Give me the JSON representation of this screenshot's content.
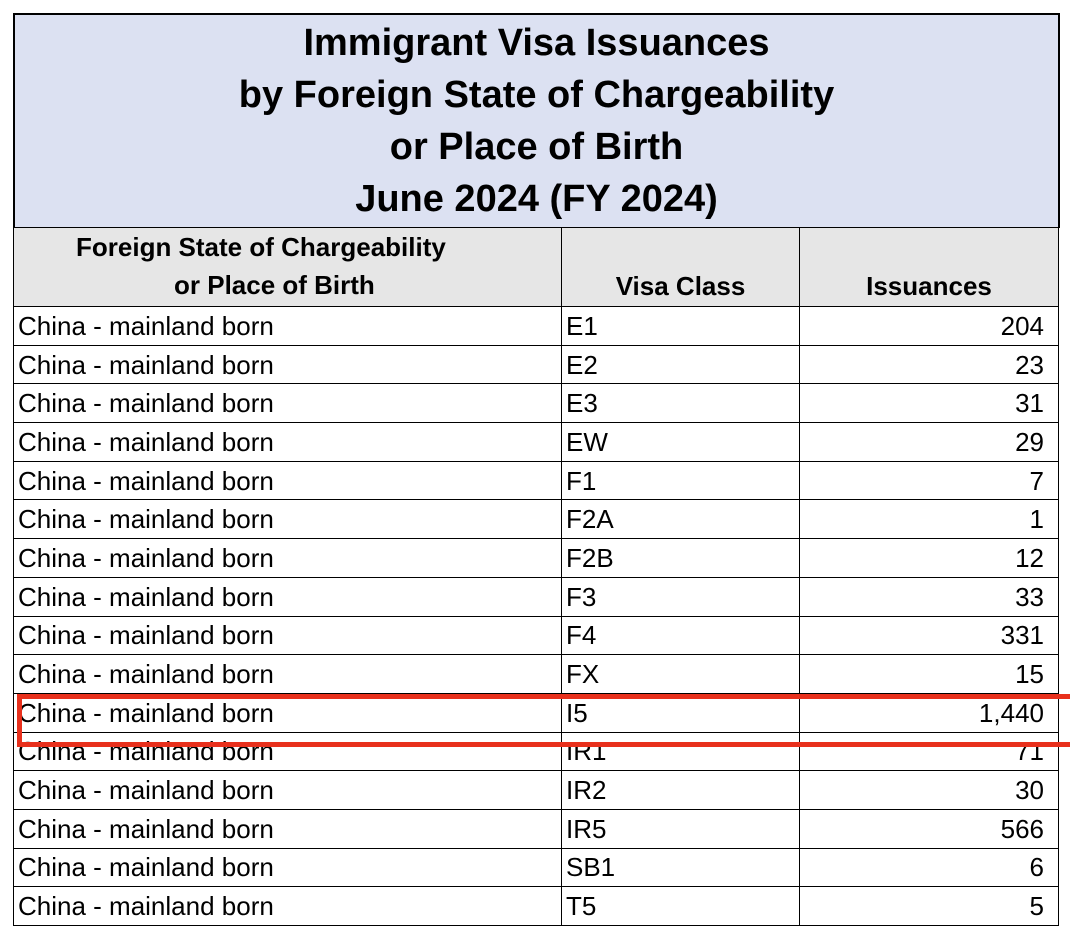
{
  "title": {
    "line1": "Immigrant Visa Issuances",
    "line2": "by Foreign State of Chargeability",
    "line3": "or Place of Birth",
    "line4": "June 2024 (FY 2024)"
  },
  "headers": {
    "col1_line1": "Foreign State of Chargeability",
    "col1_line2": "or Place of Birth",
    "col2": "Visa Class",
    "col3": "Issuances"
  },
  "rows": [
    {
      "place": "China - mainland born",
      "visa_class": "E1",
      "issuances": "204"
    },
    {
      "place": "China - mainland born",
      "visa_class": "E2",
      "issuances": "23"
    },
    {
      "place": "China - mainland born",
      "visa_class": "E3",
      "issuances": "31"
    },
    {
      "place": "China - mainland born",
      "visa_class": "EW",
      "issuances": "29"
    },
    {
      "place": "China - mainland born",
      "visa_class": "F1",
      "issuances": "7"
    },
    {
      "place": "China - mainland born",
      "visa_class": "F2A",
      "issuances": "1"
    },
    {
      "place": "China - mainland born",
      "visa_class": "F2B",
      "issuances": "12"
    },
    {
      "place": "China - mainland born",
      "visa_class": "F3",
      "issuances": "33"
    },
    {
      "place": "China - mainland born",
      "visa_class": "F4",
      "issuances": "331"
    },
    {
      "place": "China - mainland born",
      "visa_class": "FX",
      "issuances": "15"
    },
    {
      "place": "China - mainland born",
      "visa_class": "I5",
      "issuances": "1,440"
    },
    {
      "place": "China - mainland born",
      "visa_class": "IR1",
      "issuances": "71"
    },
    {
      "place": "China - mainland born",
      "visa_class": "IR2",
      "issuances": "30"
    },
    {
      "place": "China - mainland born",
      "visa_class": "IR5",
      "issuances": "566"
    },
    {
      "place": "China - mainland born",
      "visa_class": "SB1",
      "issuances": "6"
    },
    {
      "place": "China - mainland born",
      "visa_class": "T5",
      "issuances": "5"
    }
  ],
  "highlighted_row_index": 10,
  "colors": {
    "title_background": "#dce1f2",
    "header_background": "#e6e6e6",
    "highlight_border": "#e8301c"
  }
}
